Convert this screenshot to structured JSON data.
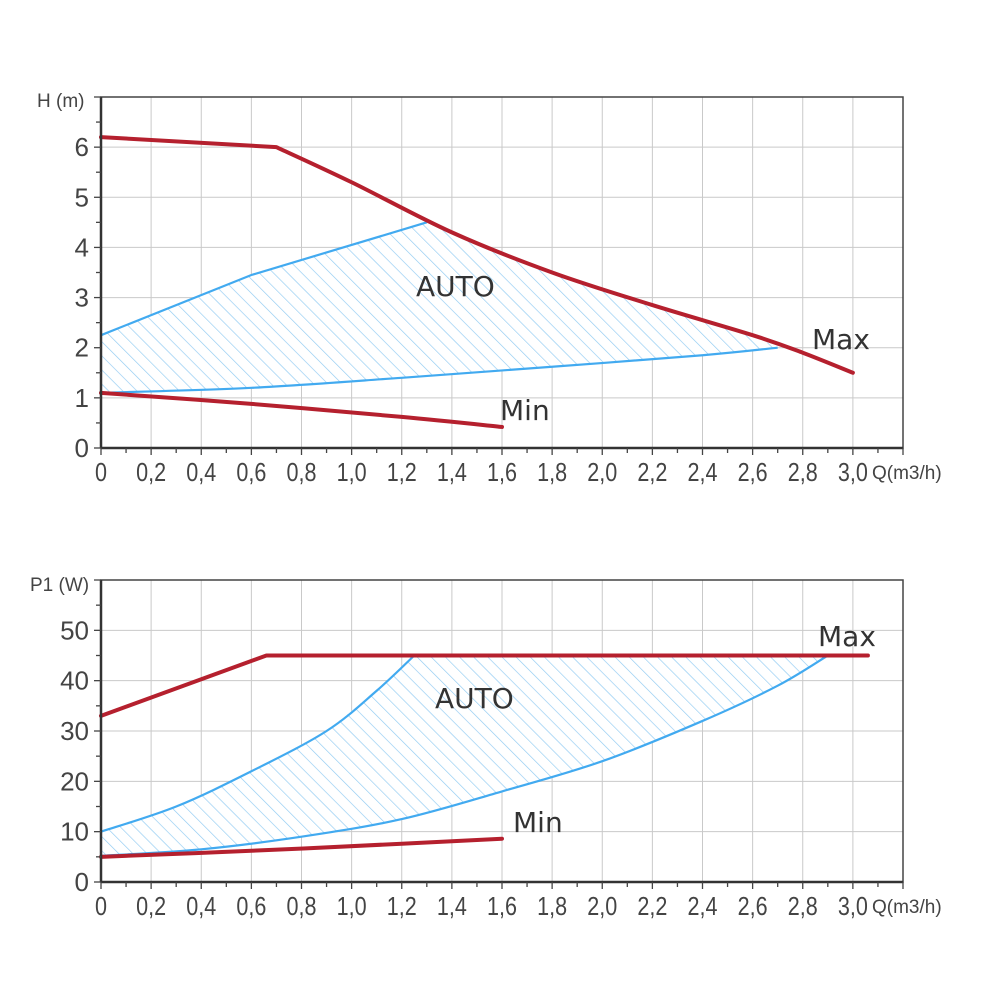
{
  "chart_data": [
    {
      "type": "line",
      "ylabel": "H (m)",
      "xlabel": "Q(m3/h)",
      "xlim": [
        0,
        3.2
      ],
      "ylim": [
        0,
        7
      ],
      "grid": true,
      "x_ticks": [
        "0",
        "0,2",
        "0,4",
        "0,6",
        "0,8",
        "1,0",
        "1,2",
        "1,4",
        "1,6",
        "1,8",
        "2,0",
        "2,2",
        "2,4",
        "2,6",
        "2,8",
        "3,0"
      ],
      "y_ticks": [
        "0",
        "1",
        "2",
        "3",
        "4",
        "5",
        "6"
      ],
      "colors": {
        "max_min": "#b5202e",
        "auto": "#42aaf0",
        "hatch": "#8fcaf2"
      },
      "series": [
        {
          "name": "Max",
          "color": "#b5202e",
          "points": [
            [
              0,
              6.2
            ],
            [
              0.7,
              6.0
            ],
            [
              1.0,
              5.3
            ],
            [
              1.4,
              4.3
            ],
            [
              1.8,
              3.5
            ],
            [
              2.2,
              2.85
            ],
            [
              2.6,
              2.25
            ],
            [
              2.8,
              1.9
            ],
            [
              3.0,
              1.5
            ]
          ]
        },
        {
          "name": "Min",
          "color": "#b5202e",
          "points": [
            [
              0,
              1.1
            ],
            [
              0.6,
              0.88
            ],
            [
              1.2,
              0.62
            ],
            [
              1.6,
              0.42
            ]
          ]
        },
        {
          "name": "AUTO",
          "color": "#42aaf0",
          "upper": [
            [
              0,
              2.25
            ],
            [
              0.6,
              3.45
            ],
            [
              1.3,
              4.5
            ]
          ],
          "lower": [
            [
              0,
              1.1
            ],
            [
              0.6,
              1.2
            ],
            [
              1.2,
              1.4
            ],
            [
              1.8,
              1.62
            ],
            [
              2.4,
              1.85
            ],
            [
              2.7,
              2.0
            ]
          ]
        }
      ],
      "annotations": [
        "AUTO",
        "Max",
        "Min"
      ]
    },
    {
      "type": "line",
      "ylabel": "P1 (W)",
      "xlabel": "Q(m3/h)",
      "xlim": [
        0,
        3.2
      ],
      "ylim": [
        0,
        60
      ],
      "grid": true,
      "x_ticks": [
        "0",
        "0,2",
        "0,4",
        "0,6",
        "0,8",
        "1,0",
        "1,2",
        "1,4",
        "1,6",
        "1,8",
        "2,0",
        "2,2",
        "2,4",
        "2,6",
        "2,8",
        "3,0"
      ],
      "y_ticks": [
        "0",
        "10",
        "20",
        "30",
        "40",
        "50"
      ],
      "colors": {
        "max_min": "#b5202e",
        "auto": "#42aaf0",
        "hatch": "#8fcaf2"
      },
      "series": [
        {
          "name": "Max",
          "color": "#b5202e",
          "points": [
            [
              0,
              33
            ],
            [
              0.66,
              45
            ],
            [
              3.06,
              45
            ]
          ]
        },
        {
          "name": "Min",
          "color": "#b5202e",
          "points": [
            [
              0,
              5
            ],
            [
              0.6,
              6.2
            ],
            [
              1.2,
              7.6
            ],
            [
              1.6,
              8.6
            ]
          ]
        },
        {
          "name": "AUTO",
          "color": "#42aaf0",
          "upper": [
            [
              0,
              10
            ],
            [
              0.3,
              15
            ],
            [
              0.6,
              22
            ],
            [
              0.9,
              30
            ],
            [
              1.1,
              38
            ],
            [
              1.25,
              45
            ]
          ],
          "lower": [
            [
              0,
              5.2
            ],
            [
              0.4,
              6.5
            ],
            [
              0.8,
              9
            ],
            [
              1.2,
              12.5
            ],
            [
              1.6,
              18
            ],
            [
              2.0,
              24
            ],
            [
              2.4,
              32
            ],
            [
              2.7,
              39
            ],
            [
              2.9,
              45
            ]
          ]
        }
      ],
      "annotations": [
        "AUTO",
        "Max",
        "Min"
      ]
    }
  ]
}
